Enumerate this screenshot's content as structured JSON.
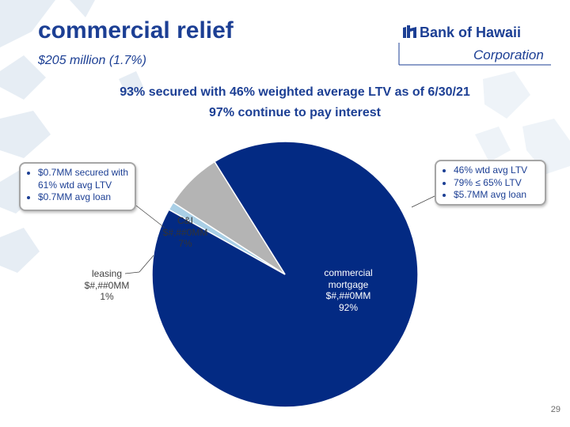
{
  "slide": {
    "title": "commercial relief",
    "subtitle": "$205 million (1.7%)",
    "headline_1": "93% secured with 46% weighted average LTV as of 6/30/21",
    "headline_2": "97% continue to pay interest",
    "page_number": "29"
  },
  "logo": {
    "name": "Bank of Hawaii",
    "sub": "Corporation"
  },
  "callouts": {
    "left": [
      "$0.7MM secured with 61% wtd avg LTV",
      "$0.7MM avg loan"
    ],
    "right": [
      "46% wtd avg LTV",
      "79% ≤ 65% LTV",
      "$5.7MM avg loan"
    ]
  },
  "chart_data": {
    "type": "pie",
    "slices": [
      {
        "label": "commercial mortgage",
        "value_text": "$#,##0MM",
        "percent": 92,
        "percent_text": "92%",
        "color": "#032a83"
      },
      {
        "label": "leasing",
        "value_text": "$#,##0MM",
        "percent": 1,
        "percent_text": "1%",
        "color": "#a9cfe6"
      },
      {
        "label": "C&I",
        "value_text": "$#,##0MM",
        "percent": 7,
        "percent_text": "7%",
        "color": "#b4b4b4"
      }
    ]
  },
  "colors": {
    "brand_blue": "#1c3f94",
    "mortgage": "#032a83",
    "leasing": "#a9cfe6",
    "ci": "#b4b4b4"
  }
}
